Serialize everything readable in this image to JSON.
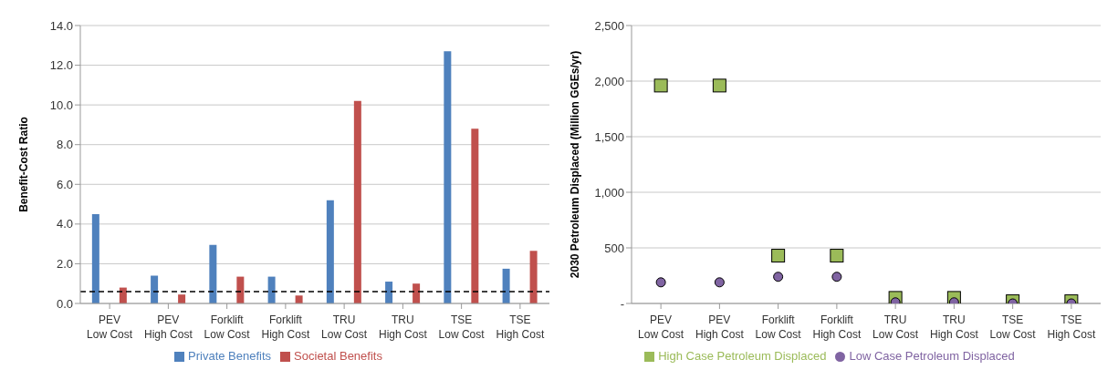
{
  "chart_data": [
    {
      "type": "bar",
      "ylabel": "Benefit-Cost Ratio",
      "categories": [
        "PEV Low Cost",
        "PEV High Cost",
        "Forklift Low Cost",
        "Forklift High Cost",
        "TRU Low Cost",
        "TRU High Cost",
        "TSE Low Cost",
        "TSE High Cost"
      ],
      "series": [
        {
          "name": "Private Benefits",
          "color": "#4f81bd",
          "values": [
            4.5,
            1.4,
            2.95,
            1.35,
            5.2,
            1.1,
            12.7,
            1.75
          ]
        },
        {
          "name": "Societal Benefits",
          "color": "#c0504d",
          "values": [
            0.8,
            0.45,
            1.35,
            0.4,
            10.2,
            1.0,
            8.8,
            2.65
          ]
        }
      ],
      "ylim": [
        0,
        14
      ],
      "yticks": [
        {
          "value": 0,
          "label": "0.0"
        },
        {
          "value": 2,
          "label": "2.0"
        },
        {
          "value": 4,
          "label": "4.0"
        },
        {
          "value": 6,
          "label": "6.0"
        },
        {
          "value": 8,
          "label": "8.0"
        },
        {
          "value": 10,
          "label": "10.0"
        },
        {
          "value": 12,
          "label": "12.0"
        },
        {
          "value": 14,
          "label": "14.0"
        }
      ],
      "ref_lines": [
        {
          "axis": "y",
          "value": 0.6,
          "color": "#000000",
          "line_style": "dashed"
        }
      ],
      "grid": "y",
      "legend": "bottom"
    },
    {
      "type": "scatter",
      "ylabel": "2030 Petroleum Displaced (Million GGEs/yr)",
      "categories": [
        "PEV Low Cost",
        "PEV High Cost",
        "Forklift Low Cost",
        "Forklift High Cost",
        "TRU Low Cost",
        "TRU High Cost",
        "TSE Low Cost",
        "TSE High Cost"
      ],
      "series": [
        {
          "name": "High Case  Petroleum Displaced",
          "color": "#9bbb59",
          "marker": "square",
          "values": [
            1960,
            1960,
            430,
            430,
            50,
            50,
            20,
            20
          ]
        },
        {
          "name": "Low Case Petroleum Displaced",
          "color": "#8064a2",
          "marker": "circle",
          "values": [
            190,
            190,
            240,
            240,
            10,
            10,
            0,
            0
          ]
        }
      ],
      "ylim": [
        0,
        2500
      ],
      "yticks": [
        {
          "value": 0,
          "label": "-"
        },
        500,
        {
          "value": 1000,
          "label": "1,000"
        },
        {
          "value": 1500,
          "label": "1,500"
        },
        {
          "value": 2000,
          "label": "2,000"
        },
        {
          "value": 2500,
          "label": "2,500"
        }
      ],
      "grid": "y",
      "legend": "bottom"
    }
  ]
}
